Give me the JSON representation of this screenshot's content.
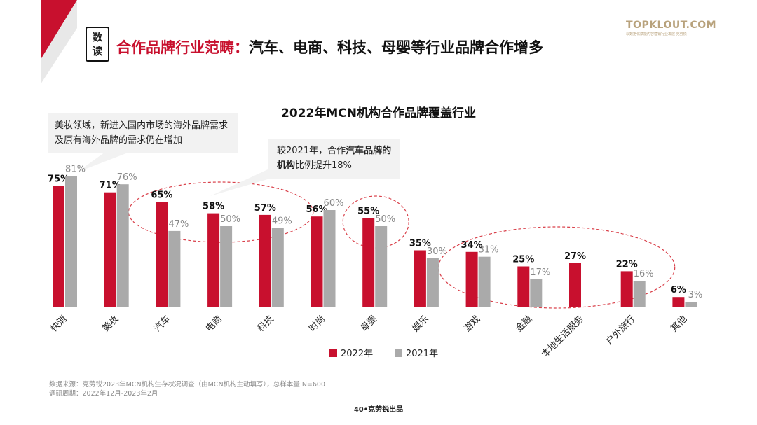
{
  "header": {
    "badge_line1": "数",
    "badge_line2": "读",
    "title_red": "合作品牌行业范畴：",
    "title_black": "汽车、电商、科技、母婴等行业品牌合作增多"
  },
  "logo": {
    "name": "TOPKLOUT.COM",
    "tagline": "以数据化赋能内容营销行业发展 克劳锐"
  },
  "callouts": {
    "beauty": "美妆领域，新进入国内市场的海外品牌需求及原有海外品牌的需求仍在增加",
    "auto_prefix": "较2021年，合作",
    "auto_bold": "汽车品牌的机构",
    "auto_suffix": "比例提升18%"
  },
  "footer": {
    "source": "数据来源：克劳锐2023年MCN机构生存状况调查（由MCN机构主动填写），总样本量 N=600",
    "period": "调研周期：2022年12月-2023年2月",
    "page": "40•克劳锐出品"
  },
  "colors": {
    "series_2022": "#c8102e",
    "series_2021": "#aaaaaa",
    "highlight_ellipse": "#d9404a"
  },
  "chart_data": {
    "type": "bar",
    "title": "2022年MCN机构合作品牌覆盖行业",
    "categories": [
      "快消",
      "美妆",
      "汽车",
      "电商",
      "科技",
      "时尚",
      "母婴",
      "娱乐",
      "游戏",
      "金融",
      "本地生活服务",
      "户外旅行",
      "其他"
    ],
    "series": [
      {
        "name": "2022年",
        "values": [
          75,
          71,
          65,
          58,
          57,
          56,
          55,
          35,
          34,
          25,
          27,
          22,
          6
        ]
      },
      {
        "name": "2021年",
        "values": [
          81,
          76,
          47,
          50,
          49,
          60,
          50,
          30,
          31,
          17,
          null,
          16,
          3
        ]
      }
    ],
    "unit": "%",
    "ylim": [
      0,
      85
    ],
    "grid": false,
    "legend": "bottom",
    "highlight_groups": [
      [
        "汽车",
        "电商",
        "科技"
      ],
      [
        "母婴"
      ],
      [
        "游戏",
        "金融",
        "本地生活服务",
        "户外旅行"
      ]
    ]
  }
}
